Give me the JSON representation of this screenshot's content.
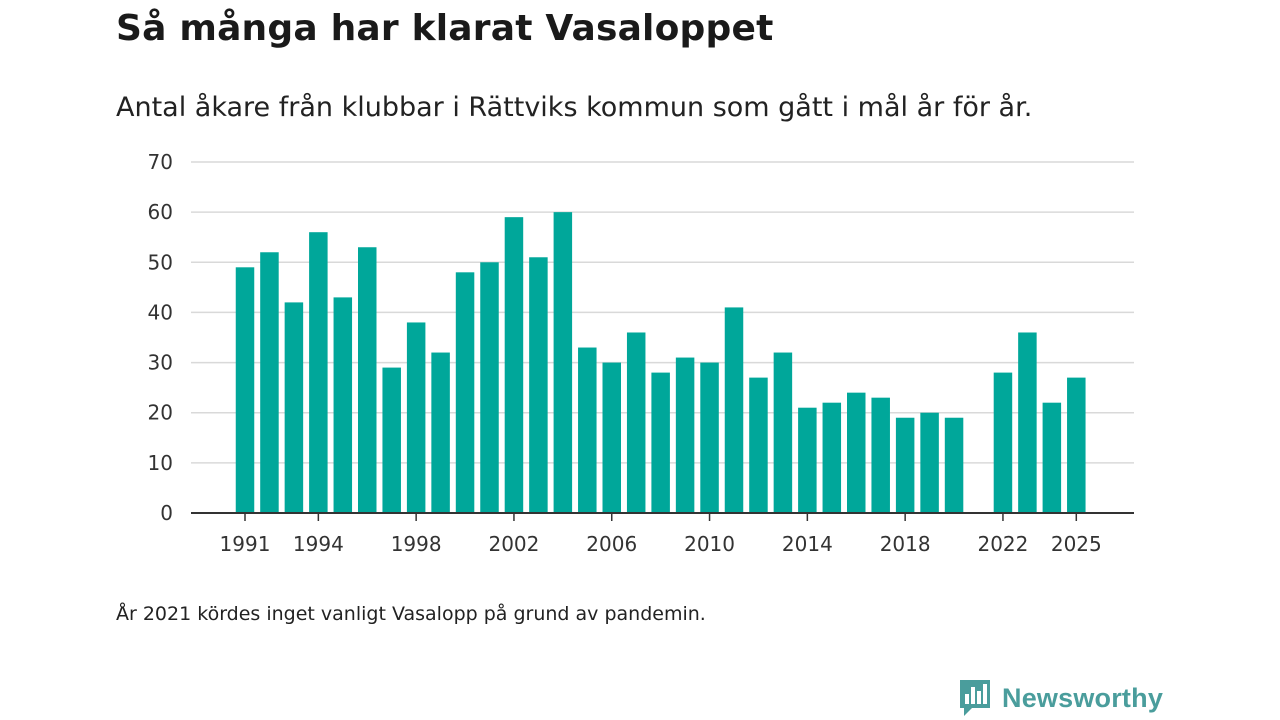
{
  "header": {
    "title": "Så många har klarat Vasaloppet",
    "subtitle": "Antal åkare från klubbar i Rättviks kommun som gått i mål år för år."
  },
  "footer": {
    "note": "År 2021 kördes inget vanligt Vasalopp på grund av pandemin.",
    "brand_name": "Newsworthy",
    "brand_logo_icon": "newsworthy-logo-icon"
  },
  "colors": {
    "bar": "#00a79a",
    "brand": "#4a9d9c",
    "grid": "#d9d9d9",
    "axis": "#333333"
  },
  "chart_data": {
    "type": "bar",
    "title": "Så många har klarat Vasaloppet",
    "subtitle": "Antal åkare från klubbar i Rättviks kommun som gått i mål år för år.",
    "xlabel": "",
    "ylabel": "",
    "ylim": [
      0,
      70
    ],
    "yticks": [
      0,
      10,
      20,
      30,
      40,
      50,
      60,
      70
    ],
    "xtick_labels": [
      "1991",
      "1994",
      "1998",
      "2002",
      "2006",
      "2010",
      "2014",
      "2018",
      "2022",
      "2025"
    ],
    "grid": true,
    "categories": [
      1991,
      1992,
      1993,
      1994,
      1995,
      1996,
      1997,
      1998,
      1999,
      2000,
      2001,
      2002,
      2003,
      2004,
      2005,
      2006,
      2007,
      2008,
      2009,
      2010,
      2011,
      2012,
      2013,
      2014,
      2015,
      2016,
      2017,
      2018,
      2019,
      2020,
      2021,
      2022,
      2023,
      2024,
      2025
    ],
    "values": [
      49,
      52,
      42,
      56,
      43,
      53,
      29,
      38,
      32,
      48,
      50,
      59,
      51,
      60,
      33,
      30,
      36,
      28,
      31,
      30,
      41,
      27,
      32,
      21,
      22,
      24,
      23,
      19,
      20,
      19,
      null,
      28,
      36,
      22,
      27
    ]
  }
}
